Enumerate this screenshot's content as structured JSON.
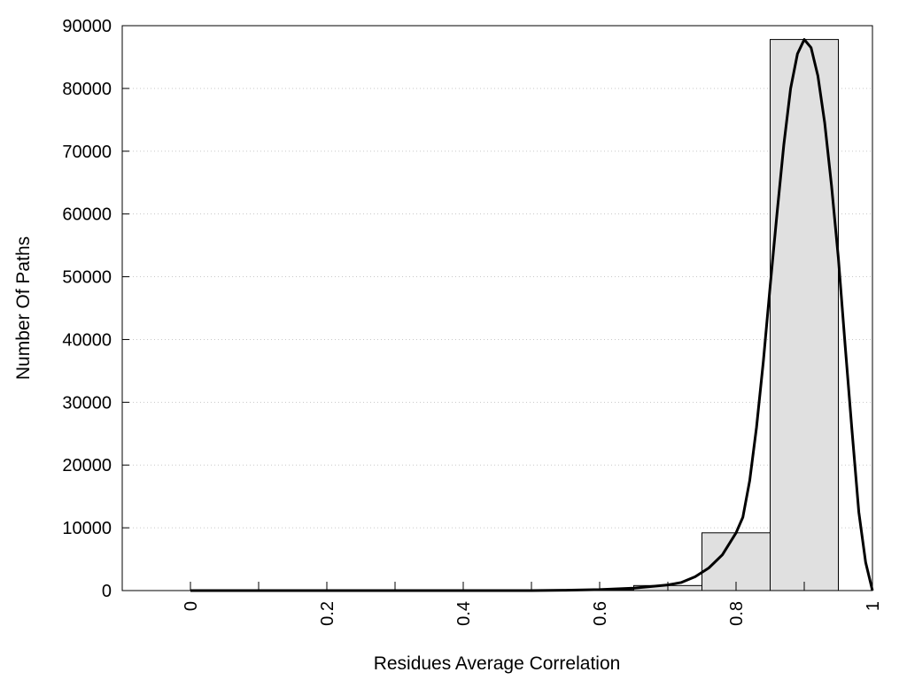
{
  "chart_data": {
    "type": "bar",
    "title": "",
    "xlabel": "Residues Average Correlation",
    "ylabel": "Number Of Paths",
    "xlim": [
      -0.1,
      1.0
    ],
    "ylim": [
      0,
      90000
    ],
    "grid": "horizontal dotted",
    "x_ticks": [
      0,
      0.2,
      0.4,
      0.6,
      0.8,
      1
    ],
    "x_minor_ticks": [
      0.1,
      0.3,
      0.5,
      0.7,
      0.9
    ],
    "y_ticks": [
      0,
      10000,
      20000,
      30000,
      40000,
      50000,
      60000,
      70000,
      80000,
      90000
    ],
    "bar_width": 0.1,
    "bars": [
      {
        "x": 0.0,
        "value": 0
      },
      {
        "x": 0.1,
        "value": 0
      },
      {
        "x": 0.2,
        "value": 0
      },
      {
        "x": 0.3,
        "value": 0
      },
      {
        "x": 0.4,
        "value": 0
      },
      {
        "x": 0.5,
        "value": 0
      },
      {
        "x": 0.6,
        "value": 100
      },
      {
        "x": 0.7,
        "value": 800
      },
      {
        "x": 0.8,
        "value": 9200
      },
      {
        "x": 0.9,
        "value": 87800
      }
    ],
    "curve": [
      [
        0.0,
        0
      ],
      [
        0.1,
        0
      ],
      [
        0.2,
        0
      ],
      [
        0.3,
        0
      ],
      [
        0.4,
        0
      ],
      [
        0.5,
        0
      ],
      [
        0.55,
        50
      ],
      [
        0.6,
        150
      ],
      [
        0.65,
        400
      ],
      [
        0.7,
        900
      ],
      [
        0.72,
        1300
      ],
      [
        0.74,
        2200
      ],
      [
        0.76,
        3600
      ],
      [
        0.78,
        5700
      ],
      [
        0.8,
        9200
      ],
      [
        0.81,
        11700
      ],
      [
        0.82,
        17500
      ],
      [
        0.83,
        26000
      ],
      [
        0.84,
        36500
      ],
      [
        0.85,
        48500
      ],
      [
        0.86,
        60000
      ],
      [
        0.87,
        71000
      ],
      [
        0.88,
        80000
      ],
      [
        0.89,
        85500
      ],
      [
        0.9,
        87800
      ],
      [
        0.91,
        86500
      ],
      [
        0.92,
        82000
      ],
      [
        0.93,
        74500
      ],
      [
        0.94,
        64500
      ],
      [
        0.95,
        53000
      ],
      [
        0.96,
        39000
      ],
      [
        0.97,
        25500
      ],
      [
        0.98,
        12500
      ],
      [
        0.99,
        4500
      ],
      [
        1.0,
        0
      ]
    ],
    "colors": {
      "bar_fill": "#e0e0e0",
      "bar_stroke": "#000000",
      "curve": "#000000",
      "grid": "#c8c8c8"
    }
  }
}
